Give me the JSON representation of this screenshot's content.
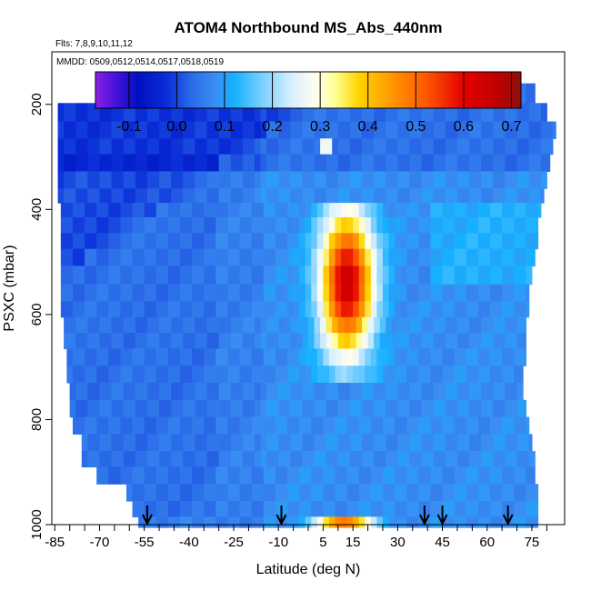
{
  "chart_data": {
    "type": "heatmap",
    "title": "ATOM4 Northbound MS_Abs_440nm",
    "note_flights": "Flts: 7,8,9,10,11,12",
    "note_dates": "MMDD: 0509,0512,0514,0517,0518,0519",
    "xlabel": "Latitude (deg N)",
    "ylabel": "PSXC (mbar)",
    "x_ticks": [
      -85,
      -70,
      -55,
      -40,
      -25,
      -10,
      5,
      15,
      30,
      45,
      60,
      75
    ],
    "y_ticks": [
      200,
      400,
      600,
      800,
      1000
    ],
    "xlim": [
      -86,
      86
    ],
    "ylim": [
      1000,
      100
    ],
    "colorbar": {
      "min": -0.17,
      "max": 0.72,
      "ticks": [
        "-0.1",
        "0.0",
        "0.1",
        "0.2",
        "0.3",
        "0.4",
        "0.5",
        "0.6",
        "0.7"
      ],
      "tick_values": [
        -0.1,
        0.0,
        0.1,
        0.2,
        0.3,
        0.4,
        0.5,
        0.6,
        0.7
      ],
      "stops": [
        [
          -0.17,
          "#8a1fe6"
        ],
        [
          -0.12,
          "#3a10d8"
        ],
        [
          -0.08,
          "#0010c0"
        ],
        [
          -0.02,
          "#0a2ed8"
        ],
        [
          0.03,
          "#2a6ae8"
        ],
        [
          0.08,
          "#3a8ef2"
        ],
        [
          0.12,
          "#15b0ff"
        ],
        [
          0.18,
          "#7dd0ff"
        ],
        [
          0.24,
          "#d6efff"
        ],
        [
          0.29,
          "#fffef0"
        ],
        [
          0.33,
          "#ffff99"
        ],
        [
          0.38,
          "#ffd400"
        ],
        [
          0.44,
          "#ffa000"
        ],
        [
          0.52,
          "#ff5a00"
        ],
        [
          0.6,
          "#e40000"
        ],
        [
          0.67,
          "#c00000"
        ],
        [
          0.72,
          "#8a1010"
        ]
      ]
    },
    "arrows_latitude": [
      -54,
      -9,
      39,
      45,
      67
    ],
    "profile_levels_mbar": [
      180,
      215,
      250,
      280,
      310,
      345,
      375,
      400,
      430,
      460,
      490,
      525,
      560,
      590,
      620,
      650,
      680,
      715,
      745,
      780,
      810,
      845,
      875,
      905,
      940,
      970,
      1000
    ],
    "level_lat_start": [
      -49,
      -84,
      -84,
      -84,
      -84,
      -84,
      -84,
      -83,
      -83,
      -83,
      -83,
      -83,
      -83,
      -83,
      -82,
      -82,
      -81,
      -81,
      -80,
      -80,
      -79,
      -76,
      -76,
      -71,
      -61,
      -59,
      -57
    ],
    "level_lat_end": [
      76,
      80,
      83,
      82,
      81,
      80,
      79,
      78,
      77,
      77,
      76,
      75,
      74,
      74,
      73,
      73,
      73,
      72,
      72,
      73,
      74,
      75,
      76,
      76,
      77,
      77,
      77
    ],
    "plume_peak_latitude": 15,
    "plume_peak_pressure_mbar": 540,
    "plume_peak_value": 0.65,
    "background_value": 0.08
  }
}
